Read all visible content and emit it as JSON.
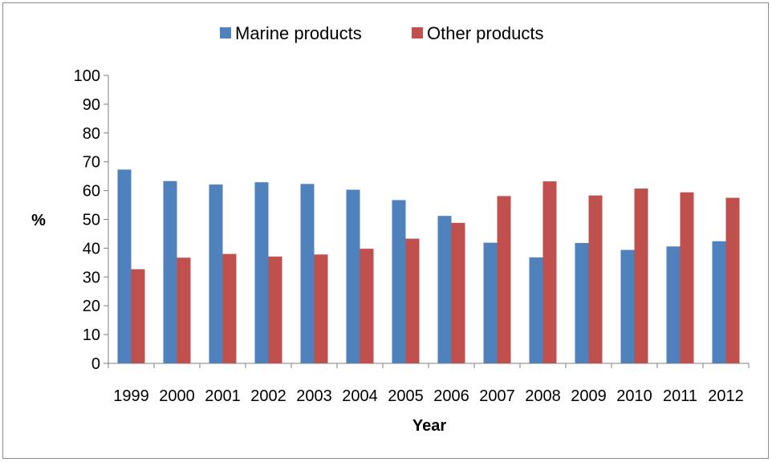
{
  "chart_data": {
    "type": "bar",
    "title": "",
    "xlabel": "Year",
    "ylabel": "%",
    "ylim": [
      0,
      100
    ],
    "yticks": [
      0,
      10,
      20,
      30,
      40,
      50,
      60,
      70,
      80,
      90,
      100
    ],
    "legend_position": "top-center",
    "grid": false,
    "categories": [
      "1999",
      "2000",
      "2001",
      "2002",
      "2003",
      "2004",
      "2005",
      "2006",
      "2007",
      "2008",
      "2009",
      "2010",
      "2011",
      "2012"
    ],
    "series": [
      {
        "name": "Marine products",
        "color": "#4F81BD",
        "values": [
          67.3,
          63.3,
          62.1,
          62.9,
          62.3,
          60.3,
          56.7,
          51.2,
          41.9,
          36.8,
          41.8,
          39.4,
          40.6,
          42.4
        ]
      },
      {
        "name": "Other products",
        "color": "#C0504D",
        "values": [
          32.7,
          36.7,
          38.0,
          37.1,
          37.8,
          39.8,
          43.3,
          48.8,
          58.1,
          63.2,
          58.3,
          60.7,
          59.4,
          57.5
        ]
      }
    ]
  }
}
